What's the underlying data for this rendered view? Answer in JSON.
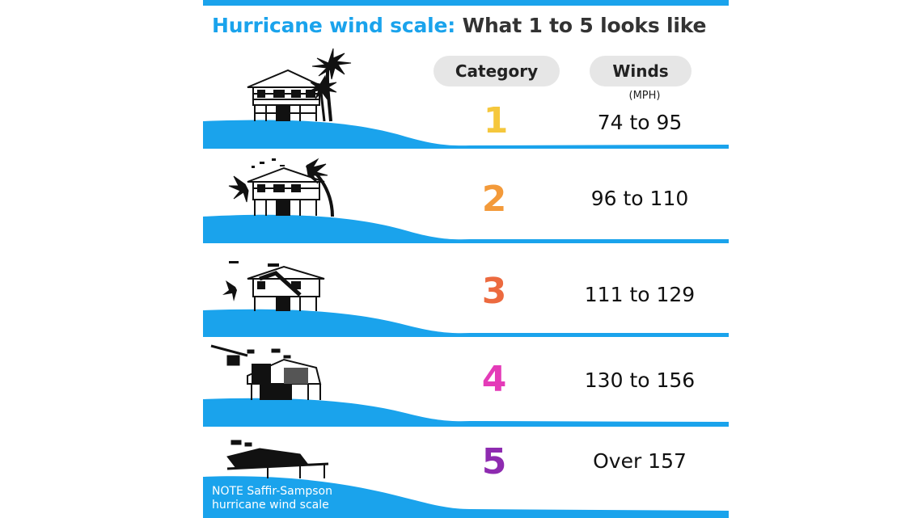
{
  "title": {
    "highlight": "Hurricane wind scale:",
    "rest": "What 1 to 5 looks like"
  },
  "headers": {
    "category": "Category",
    "winds": "Winds",
    "unit": "(MPH)"
  },
  "rows": [
    {
      "category": "1",
      "winds": "74 to 95",
      "color": "#f5c73c",
      "house_state": "intact house with palm trees"
    },
    {
      "category": "2",
      "winds": "96 to 110",
      "color": "#f39a3a",
      "house_state": "house with bent palms and flying debris"
    },
    {
      "category": "3",
      "winds": "111 to 129",
      "color": "#ec6a3f",
      "house_state": "house with roof damage"
    },
    {
      "category": "4",
      "winds": "130 to 156",
      "color": "#e43bb8",
      "house_state": "heavily damaged house"
    },
    {
      "category": "5",
      "winds": "Over 157",
      "color": "#8e2bb0",
      "house_state": "destroyed house"
    }
  ],
  "note": "NOTE Saffir-Sampson hurricane wind scale",
  "colors": {
    "accent": "#1aa3ec",
    "title_dark": "#333333",
    "pill_bg": "#e6e6e6"
  }
}
